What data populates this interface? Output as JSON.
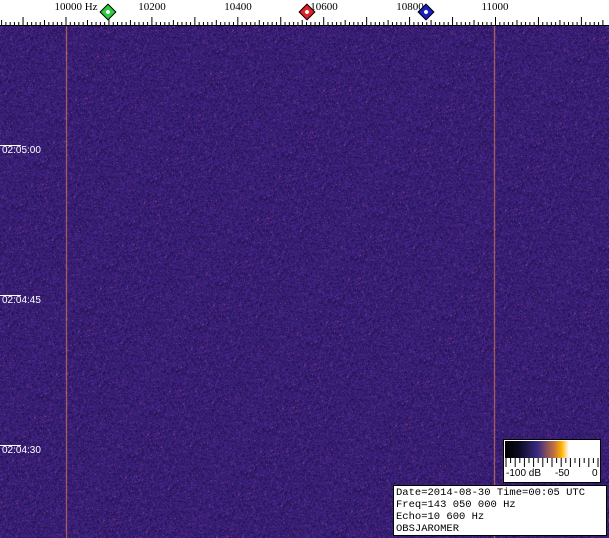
{
  "ruler": {
    "labels": [
      "10000 Hz",
      "10200",
      "10400",
      "10600",
      "10800",
      "11000"
    ],
    "markers": [
      {
        "name": "green-marker",
        "color": "#2ecc40",
        "freq": 10100
      },
      {
        "name": "red-marker",
        "color": "#e0202a",
        "freq": 10563
      },
      {
        "name": "blue-marker",
        "color": "#1a20c0",
        "freq": 10840
      }
    ]
  },
  "time_labels": [
    "02:05:00",
    "02:04:45",
    "02:04:30"
  ],
  "colorbar": {
    "min_label": "-100 dB",
    "mid_label": "-50",
    "max_label": "0"
  },
  "info": {
    "line1": "Date=2014-08-30 Time=00:05 UTC",
    "line2": "Freq=143 050 000 Hz",
    "line3": "Echo=10 600 Hz",
    "line4": "OBSJAROMER"
  },
  "colors": {
    "background": "#2a1a6a",
    "signal_line": "#d07050"
  }
}
